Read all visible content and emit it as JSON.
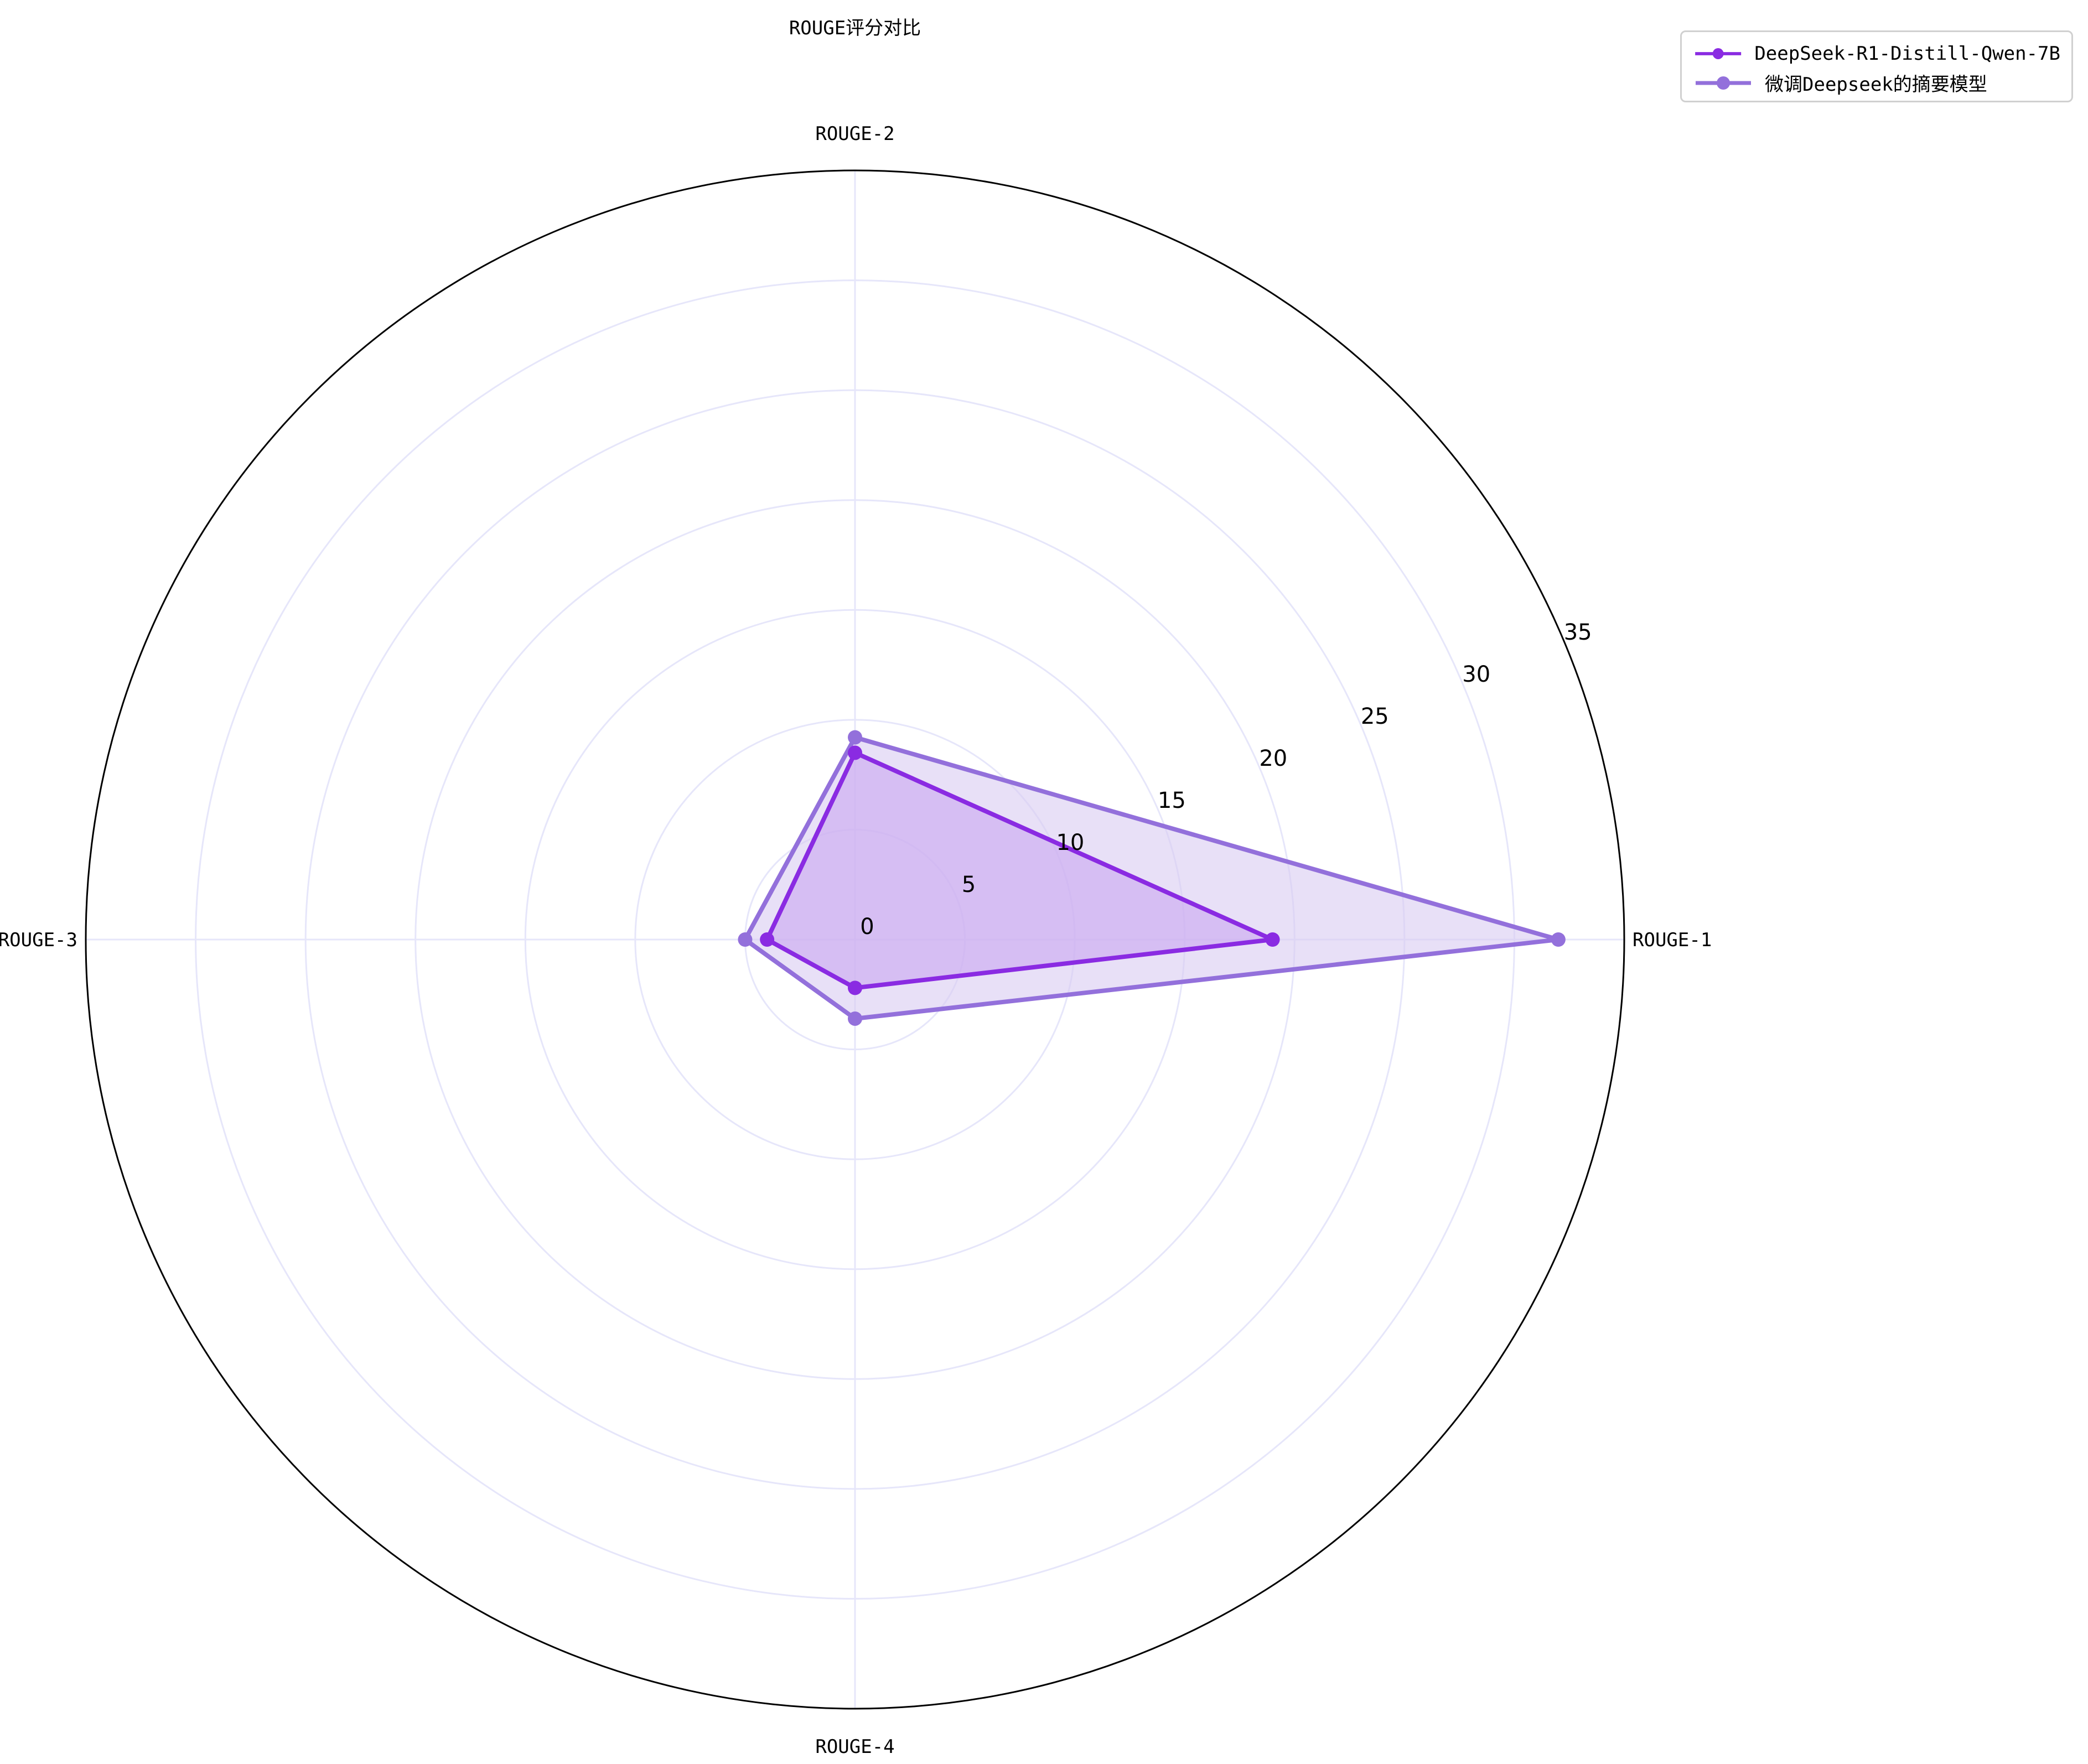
{
  "chart_data": {
    "type": "radar",
    "title": "ROUGE评分对比",
    "axes": [
      "ROUGE-1",
      "ROUGE-2",
      "ROUGE-3",
      "ROUGE-4"
    ],
    "rlim": [
      0,
      35
    ],
    "rticks": [
      "0",
      "5",
      "10",
      "15",
      "20",
      "25",
      "30",
      "35"
    ],
    "grid": true,
    "legend_position": "top-right",
    "series": [
      {
        "name": "DeepSeek-R1-Distill-Qwen-7B",
        "values": [
          19.0,
          8.5,
          4.0,
          2.2
        ],
        "color": "#8a2be2",
        "fill": "#c9a6f0"
      },
      {
        "name": "微调Deepseek的摘要模型",
        "values": [
          32.0,
          9.2,
          5.0,
          3.6
        ],
        "color": "#9370db",
        "fill": "#d8ccf2"
      }
    ]
  }
}
